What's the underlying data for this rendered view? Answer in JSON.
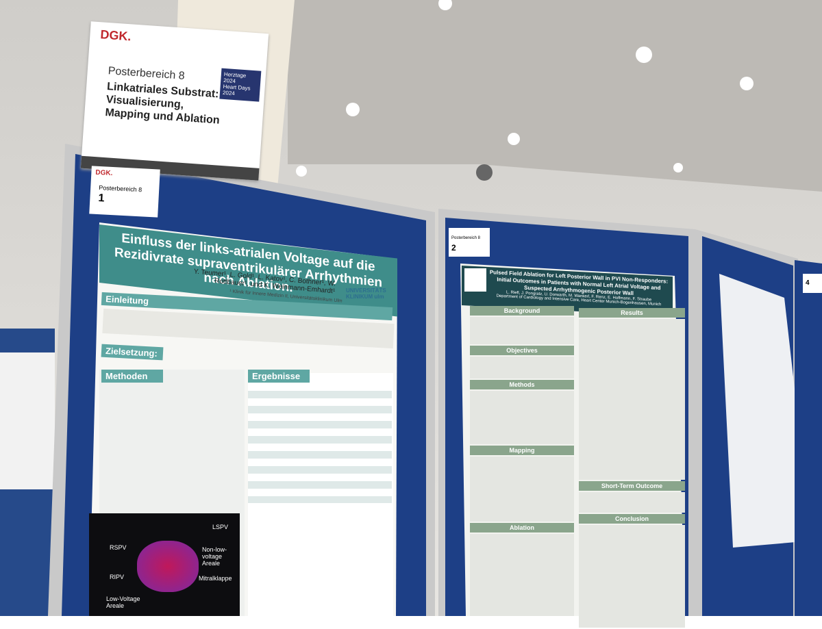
{
  "sign": {
    "brand": "DGK.",
    "event": "Herztage 2024",
    "event_en": "Heart Days 2024",
    "area": "Posterbereich 8",
    "title": "Linkatriales Substrat: Visualisierung, Mapping und Ablation"
  },
  "poster_1": {
    "brand": "DGK.",
    "label": "Posterbereich 8",
    "number": "1",
    "title": "Einfluss der links-atrialen Voltage auf die Rezidivrate supraventrikulärer Arrhythmien nach Ablation.",
    "authors": "Y. Teumer¹, L. Gold¹, L. Katov¹, C. Bothner¹, W. Rottbauer¹, und K. Weinmann-Emhardt¹",
    "affiliation": "¹ Klinik für Innere Medizin II, Universitätsklinikum Ulm",
    "logo": "UNIVERSITÄTS KLINIKUM ulm",
    "sections": [
      "Einleitung",
      "Zielsetzung:",
      "Methoden",
      "Ergebnisse"
    ],
    "image_labels": [
      "LSPV",
      "RSPV",
      "RIPV",
      "Non-low-voltage Areale",
      "Mitralklappe",
      "Low-Voltage Areale"
    ]
  },
  "poster_2": {
    "label": "Posterbereich 8",
    "number": "2",
    "title": "Pulsed Field Ablation for Left Posterior Wall in PVI Non-Responders: Initial Outcomes in Patients with Normal Left Atrial Voltage and Suspected Arrhythmogenic Posterior Wall",
    "authors": "L. Riefl, J. Pongratz, U. Dorwarth, M. Wankerl, F. Renz, E. Hoffmann, F. Straube",
    "affiliation": "Department of Cardiology and Intensive Care, Heart Center Munich-Bogenhausen, Munich",
    "sections_left": [
      "Background",
      "Objectives",
      "Methods",
      "Mapping",
      "Ablation"
    ],
    "sections_right": [
      "Results",
      "Short-Term Outcome",
      "Conclusion"
    ]
  },
  "poster_4": {
    "number": "4"
  }
}
